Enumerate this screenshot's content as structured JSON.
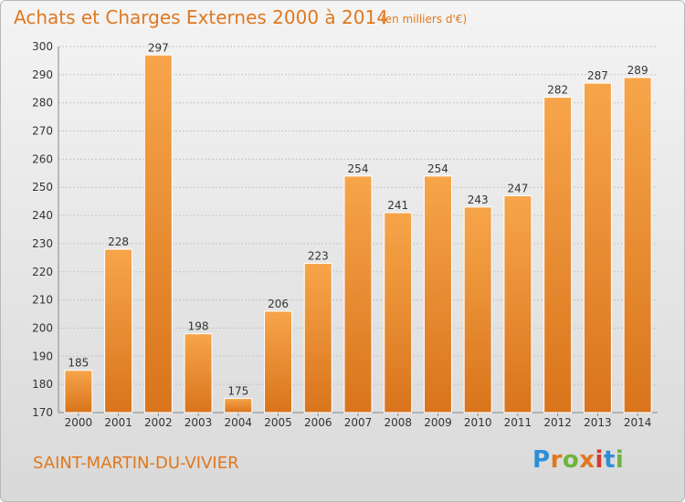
{
  "header": {
    "title": "Achats et Charges Externes 2000 à 2014",
    "subtitle": "(en milliers d'€)"
  },
  "footer": {
    "commune": "SAINT-MARTIN-DU-VIVIER",
    "logo_text": "Proxiti"
  },
  "colors": {
    "bar": "#f29a3b",
    "bar_dark": "#d9741c",
    "title": "#e0781f",
    "grid": "#c4c4c4"
  },
  "chart_data": {
    "type": "bar",
    "title": "Achats et Charges Externes 2000 à 2014",
    "subtitle": "(en milliers d'€)",
    "categories": [
      "2000",
      "2001",
      "2002",
      "2003",
      "2004",
      "2005",
      "2006",
      "2007",
      "2008",
      "2009",
      "2010",
      "2011",
      "2012",
      "2013",
      "2014"
    ],
    "values": [
      185,
      228,
      297,
      198,
      175,
      206,
      223,
      254,
      241,
      254,
      243,
      247,
      282,
      287,
      289
    ],
    "xlabel": "",
    "ylabel": "",
    "ylim": [
      170,
      300
    ],
    "yticks": [
      170,
      180,
      190,
      200,
      210,
      220,
      230,
      240,
      250,
      260,
      270,
      280,
      290,
      300
    ],
    "grid": true,
    "data_labels": true
  }
}
